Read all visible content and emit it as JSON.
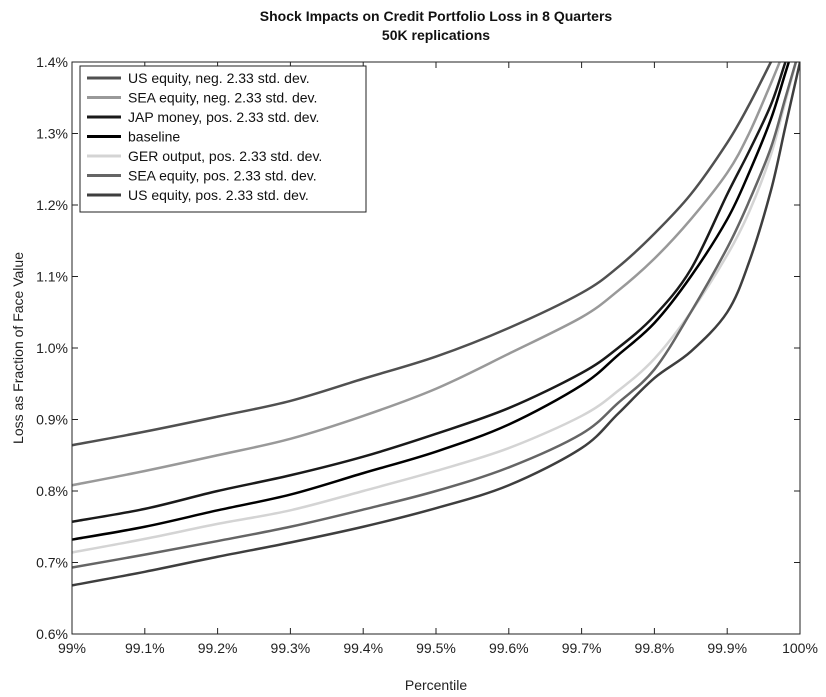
{
  "chart_data": {
    "type": "line",
    "title": "Shock Impacts on Credit Portfolio Loss in 8 Quarters",
    "subtitle": "50K replications",
    "xlabel": "Percentile",
    "ylabel": "Loss as Fraction of Face Value",
    "xlim": [
      99.0,
      100.0
    ],
    "ylim": [
      0.6,
      1.4
    ],
    "x_ticks": [
      99.0,
      99.1,
      99.2,
      99.3,
      99.4,
      99.5,
      99.6,
      99.7,
      99.8,
      99.9,
      100.0
    ],
    "x_tick_labels": [
      "99%",
      "99.1%",
      "99.2%",
      "99.3%",
      "99.4%",
      "99.5%",
      "99.6%",
      "99.7%",
      "99.8%",
      "99.9%",
      "100%"
    ],
    "y_ticks": [
      0.6,
      0.7,
      0.8,
      0.9,
      1.0,
      1.1,
      1.2,
      1.3,
      1.4
    ],
    "y_tick_labels": [
      "0.6%",
      "0.7%",
      "0.8%",
      "0.9%",
      "1.0%",
      "1.1%",
      "1.2%",
      "1.3%",
      "1.4%"
    ],
    "grid": false,
    "legend_position": "top-left",
    "x": [
      99.0,
      99.1,
      99.2,
      99.3,
      99.4,
      99.5,
      99.6,
      99.7,
      99.75,
      99.8,
      99.85,
      99.9,
      99.93,
      99.96,
      99.98,
      100.0
    ],
    "series": [
      {
        "name": "US equity, neg. 2.33 std. dev.",
        "color": "#505050",
        "values": [
          0.864,
          0.883,
          0.904,
          0.926,
          0.957,
          0.988,
          1.028,
          1.077,
          1.113,
          1.16,
          1.215,
          1.287,
          1.34,
          1.4,
          1.44,
          1.48
        ]
      },
      {
        "name": "SEA equity, neg. 2.33 std. dev.",
        "color": "#999999",
        "values": [
          0.808,
          0.828,
          0.85,
          0.873,
          0.905,
          0.943,
          0.992,
          1.043,
          1.08,
          1.125,
          1.18,
          1.245,
          1.3,
          1.37,
          1.42,
          1.47
        ]
      },
      {
        "name": "JAP money, pos. 2.33 std. dev.",
        "color": "#1a1a1a",
        "values": [
          0.757,
          0.775,
          0.8,
          0.822,
          0.848,
          0.88,
          0.916,
          0.965,
          1.0,
          1.045,
          1.11,
          1.215,
          1.275,
          1.34,
          1.4,
          1.46
        ]
      },
      {
        "name": "baseline",
        "color": "#000000",
        "values": [
          0.732,
          0.75,
          0.773,
          0.795,
          0.825,
          0.855,
          0.893,
          0.948,
          0.99,
          1.035,
          1.1,
          1.18,
          1.245,
          1.32,
          1.385,
          1.45
        ]
      },
      {
        "name": "GER output, pos. 2.33 std. dev.",
        "color": "#d4d4d4",
        "values": [
          0.714,
          0.733,
          0.754,
          0.773,
          0.8,
          0.828,
          0.86,
          0.905,
          0.94,
          0.985,
          1.05,
          1.13,
          1.19,
          1.27,
          1.345,
          1.42
        ]
      },
      {
        "name": "SEA equity, pos. 2.33 std. dev.",
        "color": "#656565",
        "values": [
          0.693,
          0.711,
          0.73,
          0.75,
          0.774,
          0.8,
          0.833,
          0.88,
          0.923,
          0.97,
          1.05,
          1.14,
          1.205,
          1.28,
          1.35,
          1.42
        ]
      },
      {
        "name": "US equity, pos. 2.33 std. dev.",
        "color": "#3e3e3e",
        "values": [
          0.668,
          0.687,
          0.708,
          0.728,
          0.75,
          0.776,
          0.808,
          0.86,
          0.908,
          0.958,
          0.995,
          1.05,
          1.12,
          1.22,
          1.31,
          1.4
        ]
      }
    ]
  }
}
